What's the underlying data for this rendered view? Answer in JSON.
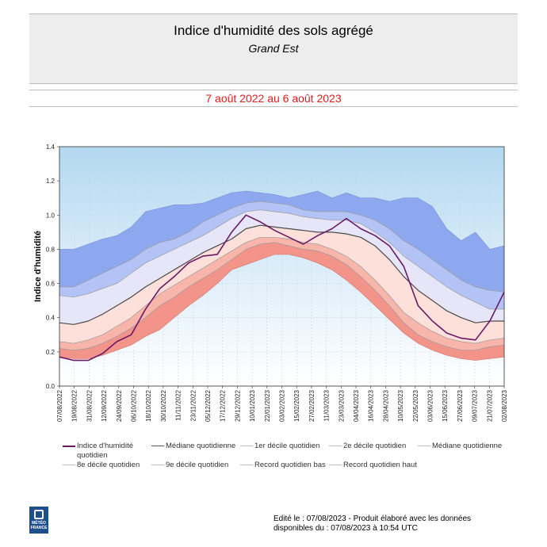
{
  "header": {
    "title": "Indice d'humidité des sols agrégé",
    "subtitle": "Grand Est",
    "period": "7 août 2022 au 6 août 2023"
  },
  "legend": {
    "items": [
      {
        "id": "daily",
        "label": "Indice d'humidité quotidien",
        "color": "#6a1a65"
      },
      {
        "id": "median",
        "label": "Médiane quotidienne",
        "color": "#555555"
      },
      {
        "id": "d1",
        "label": "1er décile quotidien",
        "color": "#bbbbbb"
      },
      {
        "id": "d2",
        "label": "2e décile quotidien",
        "color": "#bbbbbb"
      },
      {
        "id": "median2",
        "label": "Médiane quotidienne",
        "color": "#bbbbbb"
      },
      {
        "id": "d8",
        "label": "8e décile quotidien",
        "color": "#bbbbbb"
      },
      {
        "id": "d9",
        "label": "9e décile quotidien",
        "color": "#bbbbbb"
      },
      {
        "id": "rmin",
        "label": "Record quotidien bas",
        "color": "#bbbbbb"
      },
      {
        "id": "rmax",
        "label": "Record quotidien haut",
        "color": "#bbbbbb"
      }
    ]
  },
  "footer": {
    "line1": "Edité le : 07/08/2023 - Produit élaboré avec les données",
    "line2": "disponibles du : 07/08/2023 à 10:54 UTC",
    "logo_text": "MÉTÉO FRANCE"
  },
  "chart_data": {
    "type": "area",
    "ylabel": "Indice d'humidité",
    "ylim": [
      0,
      1.4
    ],
    "yticks": [
      "0.0",
      "0.2",
      "0.4",
      "0.6",
      "0.8",
      "1.0",
      "1.2",
      "1.4"
    ],
    "xticks": [
      "07/08/2022",
      "19/08/2022",
      "31/08/2022",
      "12/09/2022",
      "24/09/2022",
      "06/10/2022",
      "18/10/2022",
      "30/10/2022",
      "11/11/2022",
      "23/11/2022",
      "05/12/2022",
      "17/12/2022",
      "29/12/2022",
      "10/01/2023",
      "22/01/2023",
      "03/02/2023",
      "15/02/2023",
      "27/02/2023",
      "11/03/2023",
      "23/03/2023",
      "04/04/2023",
      "16/04/2023",
      "28/04/2023",
      "10/05/2023",
      "22/05/2023",
      "03/06/2023",
      "15/06/2023",
      "27/06/2023",
      "09/07/2023",
      "21/07/2023",
      "02/08/2023"
    ],
    "x": [
      "07/08/2022",
      "19/08/2022",
      "31/08/2022",
      "12/09/2022",
      "24/09/2022",
      "06/10/2022",
      "18/10/2022",
      "30/10/2022",
      "11/11/2022",
      "23/11/2022",
      "05/12/2022",
      "17/12/2022",
      "29/12/2022",
      "10/01/2023",
      "22/01/2023",
      "03/02/2023",
      "15/02/2023",
      "27/02/2023",
      "11/03/2023",
      "23/03/2023",
      "04/04/2023",
      "16/04/2023",
      "28/04/2023",
      "10/05/2023",
      "22/05/2023",
      "03/06/2023",
      "15/06/2023",
      "27/06/2023",
      "09/07/2023",
      "21/07/2023",
      "02/08/2023",
      "06/08/2023"
    ],
    "grid": true,
    "series": [
      {
        "name": "Record quotidien haut",
        "values": [
          0.8,
          0.8,
          0.83,
          0.86,
          0.88,
          0.93,
          1.02,
          1.04,
          1.06,
          1.06,
          1.07,
          1.1,
          1.13,
          1.14,
          1.13,
          1.12,
          1.1,
          1.12,
          1.14,
          1.1,
          1.13,
          1.1,
          1.1,
          1.08,
          1.1,
          1.1,
          1.05,
          0.92,
          0.85,
          0.9,
          0.8,
          0.82
        ]
      },
      {
        "name": "9e décile quotidien",
        "values": [
          0.58,
          0.58,
          0.62,
          0.66,
          0.7,
          0.74,
          0.8,
          0.84,
          0.86,
          0.9,
          0.96,
          1.0,
          1.04,
          1.07,
          1.08,
          1.07,
          1.06,
          1.03,
          1.02,
          1.02,
          1.02,
          1.0,
          0.97,
          0.92,
          0.85,
          0.8,
          0.74,
          0.68,
          0.62,
          0.58,
          0.56,
          0.55
        ]
      },
      {
        "name": "8e décile quotidien",
        "values": [
          0.53,
          0.52,
          0.54,
          0.57,
          0.6,
          0.66,
          0.72,
          0.76,
          0.8,
          0.84,
          0.88,
          0.93,
          0.98,
          1.02,
          1.03,
          1.02,
          1.01,
          0.99,
          0.98,
          0.97,
          0.97,
          0.95,
          0.9,
          0.84,
          0.76,
          0.7,
          0.64,
          0.58,
          0.53,
          0.49,
          0.45,
          0.45
        ]
      },
      {
        "name": "Médiane quotidienne",
        "values": [
          0.37,
          0.36,
          0.38,
          0.42,
          0.47,
          0.52,
          0.58,
          0.63,
          0.68,
          0.73,
          0.78,
          0.82,
          0.86,
          0.92,
          0.94,
          0.93,
          0.92,
          0.91,
          0.9,
          0.9,
          0.89,
          0.87,
          0.82,
          0.74,
          0.64,
          0.56,
          0.5,
          0.44,
          0.4,
          0.37,
          0.38,
          0.38
        ]
      },
      {
        "name": "2e décile quotidien",
        "values": [
          0.26,
          0.25,
          0.27,
          0.3,
          0.35,
          0.4,
          0.47,
          0.54,
          0.59,
          0.64,
          0.69,
          0.74,
          0.79,
          0.84,
          0.87,
          0.87,
          0.86,
          0.84,
          0.83,
          0.8,
          0.76,
          0.7,
          0.62,
          0.53,
          0.43,
          0.37,
          0.32,
          0.28,
          0.26,
          0.25,
          0.27,
          0.28
        ]
      },
      {
        "name": "1er décile quotidien",
        "values": [
          0.22,
          0.21,
          0.22,
          0.25,
          0.29,
          0.34,
          0.4,
          0.47,
          0.52,
          0.58,
          0.63,
          0.68,
          0.74,
          0.8,
          0.83,
          0.84,
          0.82,
          0.8,
          0.79,
          0.76,
          0.71,
          0.64,
          0.56,
          0.47,
          0.37,
          0.3,
          0.26,
          0.23,
          0.21,
          0.21,
          0.23,
          0.24
        ]
      },
      {
        "name": "Record quotidien bas",
        "values": [
          0.17,
          0.16,
          0.16,
          0.18,
          0.21,
          0.24,
          0.29,
          0.33,
          0.4,
          0.47,
          0.53,
          0.6,
          0.68,
          0.71,
          0.74,
          0.77,
          0.77,
          0.75,
          0.72,
          0.68,
          0.62,
          0.55,
          0.47,
          0.39,
          0.31,
          0.25,
          0.21,
          0.18,
          0.16,
          0.15,
          0.16,
          0.17
        ]
      },
      {
        "name": "Indice d'humidité quotidien",
        "values": [
          0.17,
          0.15,
          0.15,
          0.19,
          0.26,
          0.3,
          0.45,
          0.57,
          0.64,
          0.72,
          0.76,
          0.77,
          0.9,
          1.0,
          0.96,
          0.91,
          0.87,
          0.83,
          0.88,
          0.92,
          0.98,
          0.92,
          0.88,
          0.82,
          0.7,
          0.47,
          0.38,
          0.31,
          0.28,
          0.27,
          0.38,
          0.55
        ]
      }
    ]
  }
}
